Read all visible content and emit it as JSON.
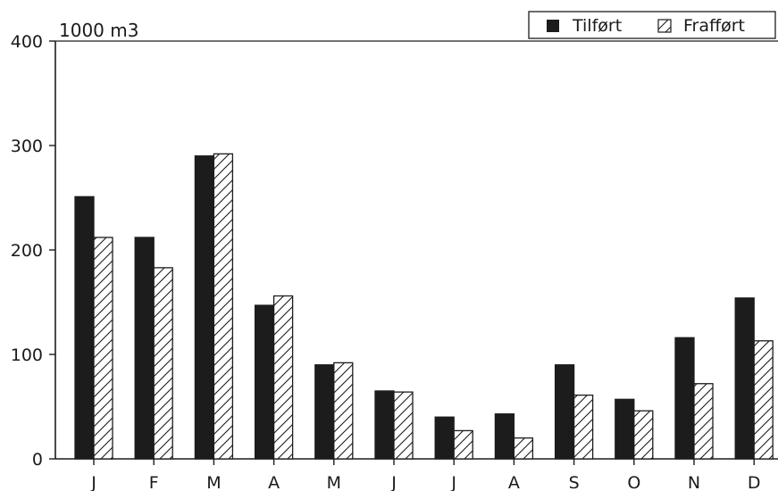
{
  "chart_data": {
    "type": "bar",
    "ylabel": "1000 m3",
    "ylim": [
      0,
      400
    ],
    "yticks": [
      0,
      100,
      200,
      300,
      400
    ],
    "categories": [
      "J",
      "F",
      "M",
      "A",
      "M",
      "J",
      "J",
      "A",
      "S",
      "O",
      "N",
      "D"
    ],
    "series": [
      {
        "name": "Tilført",
        "pattern": "solid",
        "color": "#1c1c1c",
        "values": [
          251,
          212,
          290,
          147,
          90,
          65,
          40,
          43,
          90,
          57,
          116,
          154
        ]
      },
      {
        "name": "Frafført",
        "pattern": "hatched",
        "color": "#1c1c1c",
        "values": [
          212,
          183,
          292,
          156,
          92,
          64,
          27,
          20,
          61,
          46,
          72,
          113
        ]
      }
    ],
    "legend": {
      "position": "top-right",
      "labels": [
        "Tilført",
        "Frafført"
      ]
    },
    "grid": false
  }
}
